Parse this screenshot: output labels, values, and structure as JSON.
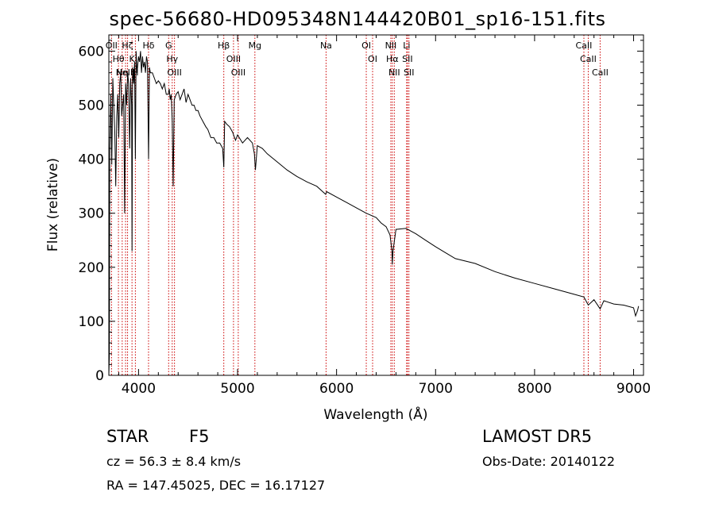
{
  "info": {
    "obj_type": "STAR",
    "subclass": "F5",
    "survey": "LAMOST DR5",
    "cz": "cz = 56.3 ± 8.4 km/s",
    "obs_date": "Obs-Date: 20140122",
    "radec": "RA = 147.45025, DEC =  16.17127"
  },
  "chart_data": {
    "type": "line",
    "title": "spec-56680-HD095348N144420B01_sp16-151.fits",
    "xlabel": "Wavelength (Å)",
    "ylabel": "Flux (relative)",
    "xlim": [
      3700,
      9100
    ],
    "ylim": [
      0,
      630
    ],
    "xticks": [
      4000,
      5000,
      6000,
      7000,
      8000,
      9000
    ],
    "yticks": [
      0,
      100,
      200,
      300,
      400,
      500,
      600
    ],
    "line_color": "#000000",
    "marker_color": "#cc0000",
    "series": [
      {
        "x": [
          3700,
          3705,
          3710,
          3720,
          3730,
          3740,
          3750,
          3760,
          3770,
          3780,
          3790,
          3800,
          3810,
          3820,
          3830,
          3840,
          3850,
          3860,
          3870,
          3880,
          3890,
          3900,
          3910,
          3920,
          3930,
          3934,
          3940,
          3950,
          3960,
          3968,
          3975,
          3985,
          4000,
          4010,
          4020,
          4030,
          4040,
          4050,
          4060,
          4070,
          4080,
          4090,
          4101,
          4110,
          4120,
          4140,
          4160,
          4180,
          4200,
          4220,
          4240,
          4260,
          4280,
          4300,
          4310,
          4320,
          4330,
          4340,
          4350,
          4360,
          4380,
          4400,
          4420,
          4440,
          4460,
          4480,
          4500,
          4520,
          4540,
          4560,
          4580,
          4600,
          4620,
          4650,
          4680,
          4700,
          4730,
          4760,
          4790,
          4820,
          4850,
          4861,
          4870,
          4890,
          4920,
          4950,
          4980,
          5000,
          5050,
          5100,
          5150,
          5170,
          5180,
          5200,
          5250,
          5300,
          5400,
          5500,
          5600,
          5700,
          5800,
          5890,
          5900,
          6000,
          6100,
          6200,
          6300,
          6400,
          6450,
          6500,
          6540,
          6560,
          6563,
          6570,
          6600,
          6700,
          6800,
          6900,
          7000,
          7100,
          7200,
          7400,
          7600,
          7800,
          8000,
          8200,
          8400,
          8498,
          8542,
          8600,
          8662,
          8700,
          8800,
          8900,
          9000,
          9020,
          9040,
          9050
        ],
        "y": [
          0,
          35,
          420,
          520,
          390,
          550,
          500,
          450,
          350,
          480,
          520,
          440,
          540,
          560,
          480,
          500,
          520,
          300,
          540,
          500,
          560,
          540,
          420,
          550,
          500,
          230,
          570,
          540,
          580,
          400,
          600,
          560,
          590,
          580,
          600,
          560,
          590,
          570,
          580,
          560,
          590,
          580,
          400,
          570,
          560,
          560,
          550,
          540,
          545,
          540,
          530,
          540,
          520,
          520,
          530,
          510,
          520,
          470,
          350,
          510,
          520,
          525,
          510,
          520,
          530,
          505,
          520,
          510,
          500,
          500,
          490,
          490,
          480,
          470,
          460,
          455,
          440,
          440,
          430,
          430,
          420,
          385,
          470,
          465,
          460,
          450,
          435,
          445,
          430,
          440,
          430,
          410,
          380,
          425,
          420,
          410,
          395,
          380,
          368,
          358,
          350,
          335,
          340,
          330,
          320,
          310,
          300,
          292,
          282,
          275,
          260,
          230,
          205,
          230,
          270,
          272,
          262,
          250,
          238,
          227,
          216,
          207,
          192,
          180,
          170,
          160,
          150,
          145,
          130,
          140,
          123,
          138,
          132,
          130,
          125,
          110,
          120,
          128
        ]
      }
    ],
    "lines": [
      {
        "wl": 3727,
        "label": "OII"
      },
      {
        "wl": 3797,
        "label": "Hθ"
      },
      {
        "wl": 3835,
        "label": "Hη"
      },
      {
        "wl": 3869,
        "label": "NeIII"
      },
      {
        "wl": 3889,
        "label": "Hζ"
      },
      {
        "wl": 3934,
        "label": "K"
      },
      {
        "wl": 3968,
        "label": "H"
      },
      {
        "wl": 4101,
        "label": "Hδ"
      },
      {
        "wl": 4304,
        "label": "G"
      },
      {
        "wl": 4340,
        "label": "Hγ"
      },
      {
        "wl": 4363,
        "label": "OIII"
      },
      {
        "wl": 4861,
        "label": "Hβ"
      },
      {
        "wl": 4959,
        "label": "OIII"
      },
      {
        "wl": 5007,
        "label": "OIII"
      },
      {
        "wl": 5175,
        "label": "Mg"
      },
      {
        "wl": 5894,
        "label": "Na"
      },
      {
        "wl": 6300,
        "label": "OI"
      },
      {
        "wl": 6364,
        "label": "OI"
      },
      {
        "wl": 6548,
        "label": "NII"
      },
      {
        "wl": 6563,
        "label": "Hα"
      },
      {
        "wl": 6583,
        "label": "NII"
      },
      {
        "wl": 6708,
        "label": "Li"
      },
      {
        "wl": 6716,
        "label": "SII"
      },
      {
        "wl": 6731,
        "label": "SII"
      },
      {
        "wl": 8498,
        "label": "CaII"
      },
      {
        "wl": 8542,
        "label": "CaII"
      },
      {
        "wl": 8662,
        "label": "CaII"
      }
    ]
  }
}
